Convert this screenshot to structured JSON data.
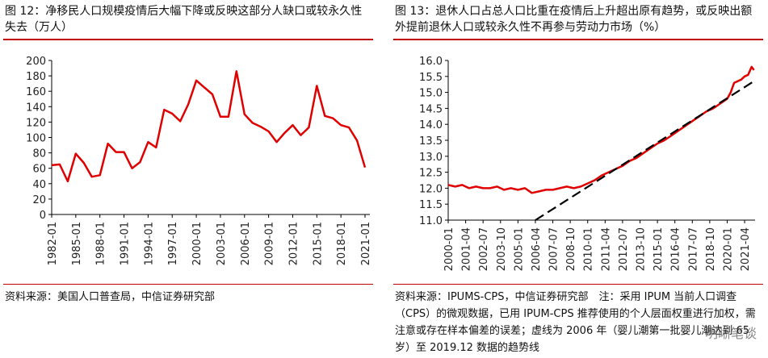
{
  "left": {
    "title": "图 12：净移民人口规模疫情后大幅下降或反映这部分人缺口或较永久性失去（万人）",
    "source": "资料来源：美国人口普查局，中信证券研究部"
  },
  "right": {
    "title": "图 13：退休人口占总人口比重在疫情后上升超出原有趋势，或反映出额外提前退休人口或较永久性不再参与劳动力市场（%）",
    "source": "资料来源：IPUMS-CPS，中信证券研究部　注：采用 IPUM 当前人口调查（CPS）的微观数据，已用 IPUM-CPS 推荐使用的个人层面权重进行加权，需注意或存在样本偏差的误差；虚线为 2006 年（婴儿潮第一批婴儿潮达到 65 岁）至 2019.12 数据的趋势线",
    "watermark": "明晰笔谈"
  },
  "chart_data": [
    {
      "type": "line",
      "title": "图 12：净移民人口规模疫情后大幅下降或反映这部分人缺口或较永久性失去（万人）",
      "xlabel": "",
      "ylabel": "",
      "ylim": [
        0,
        200
      ],
      "yticks": [
        0,
        20,
        40,
        60,
        80,
        100,
        120,
        140,
        160,
        180,
        200
      ],
      "xticks": [
        "1982-01",
        "1985-01",
        "1988-01",
        "1991-01",
        "1994-01",
        "1997-01",
        "2000-01",
        "2003-01",
        "2006-01",
        "2009-01",
        "2012-01",
        "2015-01",
        "2018-01",
        "2021-01"
      ],
      "color": "#e00000",
      "x": [
        1982,
        1983,
        1984,
        1985,
        1986,
        1987,
        1988,
        1989,
        1990,
        1991,
        1992,
        1993,
        1994,
        1995,
        1996,
        1997,
        1998,
        1999,
        2000,
        2001,
        2002,
        2003,
        2004,
        2005,
        2006,
        2007,
        2008,
        2009,
        2010,
        2011,
        2012,
        2013,
        2014,
        2015,
        2016,
        2017,
        2018,
        2019,
        2020,
        2021
      ],
      "values": [
        64,
        65,
        43,
        79,
        67,
        49,
        51,
        92,
        81,
        81,
        60,
        68,
        94,
        87,
        136,
        131,
        121,
        143,
        174,
        165,
        156,
        127,
        127,
        186,
        130,
        119,
        114,
        108,
        94,
        106,
        116,
        103,
        113,
        167,
        128,
        125,
        116,
        113,
        96,
        61
      ]
    },
    {
      "type": "line",
      "title": "图 13：退休人口占总人口比重在疫情后上升超出原有趋势，或反映出额外提前退休人口或较永久性不再参与劳动力市场（%）",
      "xlabel": "",
      "ylabel": "",
      "ylim": [
        11.0,
        16.0
      ],
      "yticks": [
        11.0,
        11.5,
        12.0,
        12.5,
        13.0,
        13.5,
        14.0,
        14.5,
        15.0,
        15.5,
        16.0
      ],
      "xticks": [
        "2000-01",
        "2001-04",
        "2002-07",
        "2003-10",
        "2005-01",
        "2006-04",
        "2007-07",
        "2008-10",
        "2010-01",
        "2011-04",
        "2012-07",
        "2013-10",
        "2015-01",
        "2016-04",
        "2017-07",
        "2018-10",
        "2020-01",
        "2021-04"
      ],
      "series": [
        {
          "color": "#e00000",
          "style": "solid",
          "x": [
            2000.0,
            2000.5,
            2001.0,
            2001.5,
            2002.0,
            2002.5,
            2003.0,
            2003.5,
            2004.0,
            2004.5,
            2005.0,
            2005.5,
            2006.0,
            2006.5,
            2007.0,
            2007.5,
            2008.0,
            2008.5,
            2009.0,
            2009.5,
            2010.0,
            2010.5,
            2011.0,
            2011.5,
            2012.0,
            2012.5,
            2013.0,
            2013.5,
            2014.0,
            2014.5,
            2015.0,
            2015.5,
            2016.0,
            2016.5,
            2017.0,
            2017.5,
            2018.0,
            2018.5,
            2019.0,
            2019.5,
            2020.0,
            2020.25,
            2020.5,
            2020.75,
            2021.0,
            2021.25,
            2021.5,
            2021.75,
            2021.92
          ],
          "values": [
            12.1,
            12.05,
            12.1,
            12.0,
            12.05,
            12.0,
            12.0,
            12.05,
            11.95,
            12.0,
            11.95,
            12.0,
            11.85,
            11.9,
            11.95,
            11.95,
            12.0,
            12.05,
            12.0,
            12.05,
            12.15,
            12.25,
            12.4,
            12.5,
            12.6,
            12.7,
            12.85,
            12.95,
            13.1,
            13.25,
            13.4,
            13.5,
            13.65,
            13.8,
            13.95,
            14.1,
            14.25,
            14.4,
            14.5,
            14.65,
            14.8,
            15.0,
            15.3,
            15.35,
            15.4,
            15.5,
            15.55,
            15.8,
            15.7
          ]
        },
        {
          "color": "#000000",
          "style": "dashed",
          "x": [
            2006.25,
            2021.92
          ],
          "values": [
            11.0,
            15.35
          ]
        }
      ]
    }
  ]
}
